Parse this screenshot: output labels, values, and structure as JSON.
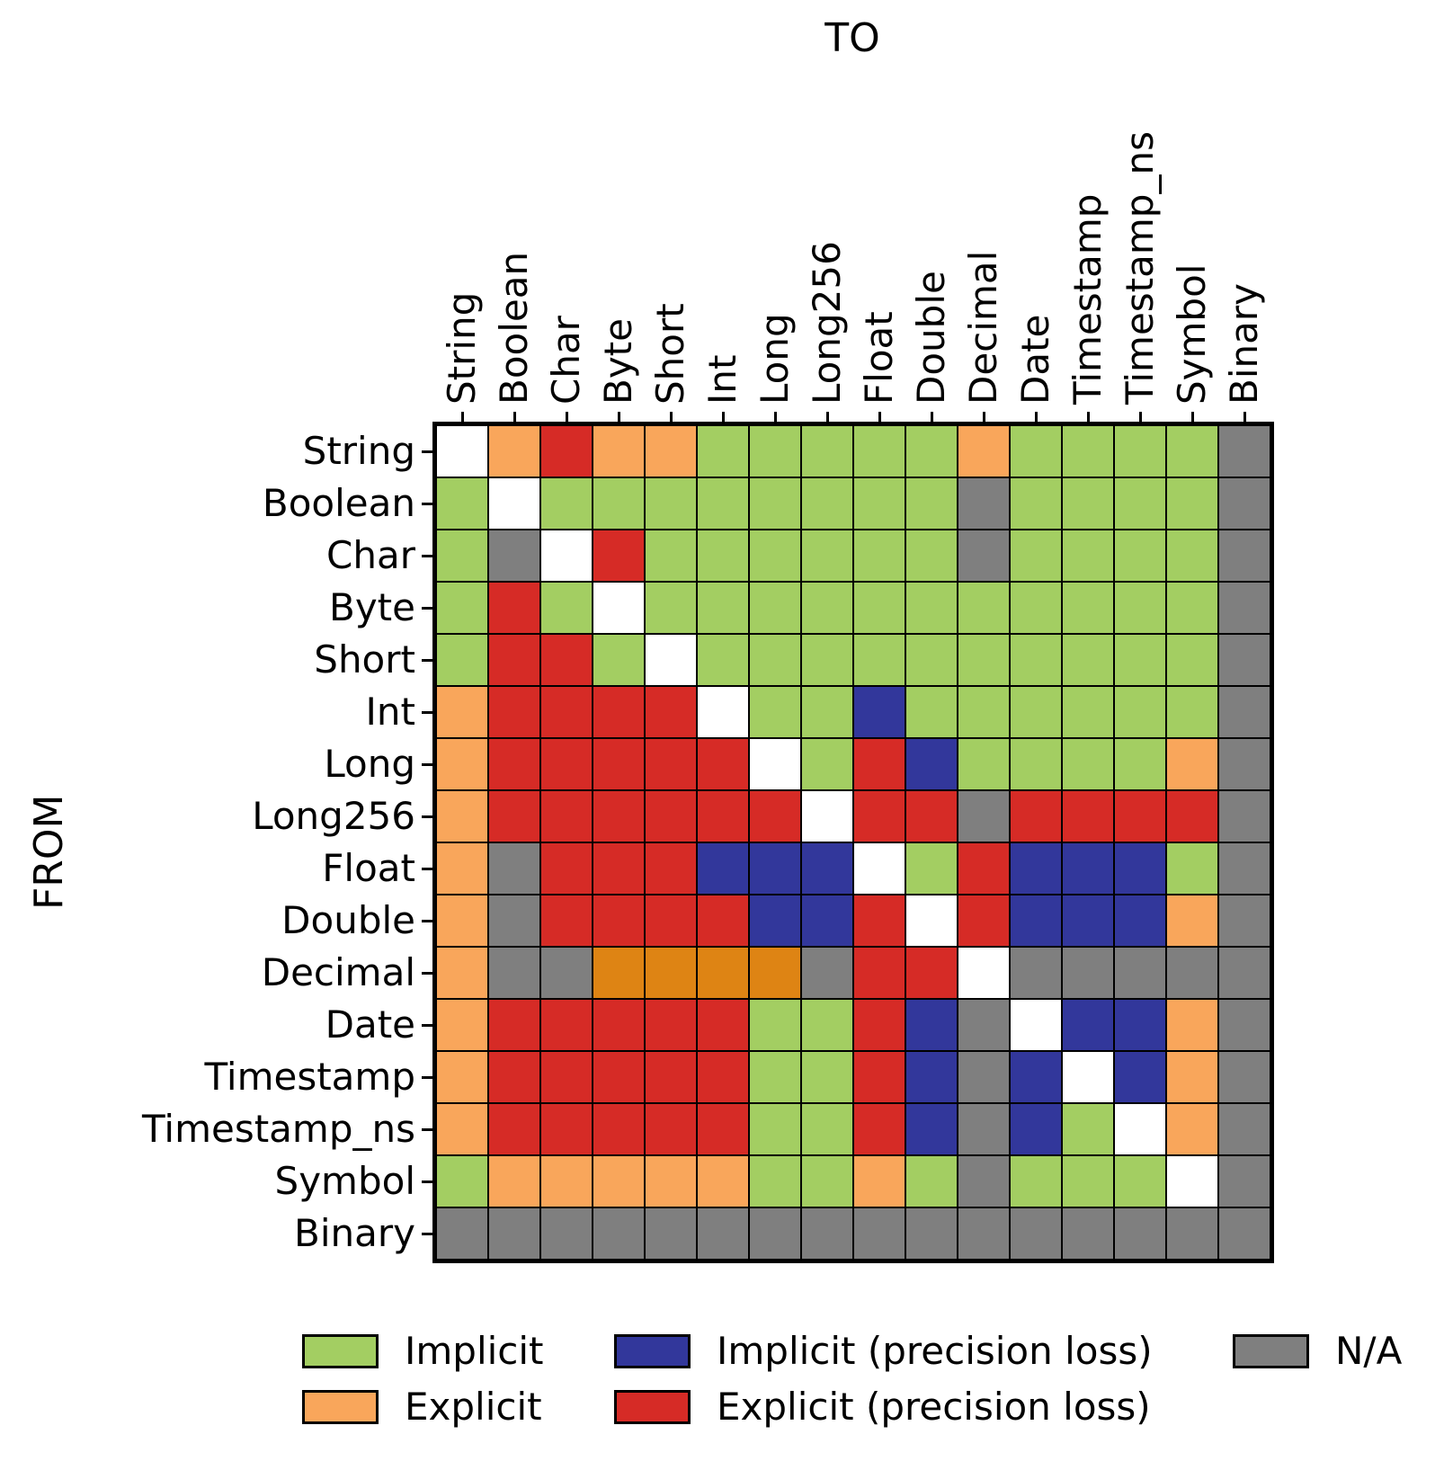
{
  "chart_data": {
    "type": "heatmap",
    "xlabel": "TO",
    "ylabel": "FROM",
    "grid": "black cell borders, no gaps",
    "legend_position": "bottom, 3 columns x 2 rows",
    "categories_x": [
      "String",
      "Boolean",
      "Char",
      "Byte",
      "Short",
      "Int",
      "Long",
      "Long256",
      "Float",
      "Double",
      "Decimal",
      "Date",
      "Timestamp",
      "Timestamp_ns",
      "Symbol",
      "Binary"
    ],
    "categories_y": [
      "String",
      "Boolean",
      "Char",
      "Byte",
      "Short",
      "Int",
      "Long",
      "Long256",
      "Float",
      "Double",
      "Decimal",
      "Date",
      "Timestamp",
      "Timestamp_ns",
      "Symbol",
      "Binary"
    ],
    "palette": {
      "I": {
        "label": "Implicit",
        "color": "#A3CE62"
      },
      "E": {
        "label": "Explicit",
        "color": "#F9A65B"
      },
      "IP": {
        "label": "Implicit (precision loss)",
        "color": "#32379B"
      },
      "EP": {
        "label": "Explicit (precision loss)",
        "color": "#D62B26"
      },
      "E2": {
        "label": "",
        "color": "#DE8414"
      },
      "NA": {
        "label": "N/A",
        "color": "#7F7F7F"
      },
      "SELF": {
        "label": "",
        "color": "#FFFFFF"
      }
    },
    "legend": [
      {
        "label": "Implicit",
        "color": "#A3CE62"
      },
      {
        "label": "Implicit (precision loss)",
        "color": "#32379B"
      },
      {
        "label": "N/A",
        "color": "#7F7F7F"
      },
      {
        "label": "Explicit",
        "color": "#F9A65B"
      },
      {
        "label": "Explicit (precision loss)",
        "color": "#D62B26"
      }
    ],
    "cells": [
      [
        "SELF",
        "E",
        "EP",
        "E",
        "E",
        "I",
        "I",
        "I",
        "I",
        "I",
        "E",
        "I",
        "I",
        "I",
        "I",
        "NA"
      ],
      [
        "I",
        "SELF",
        "I",
        "I",
        "I",
        "I",
        "I",
        "I",
        "I",
        "I",
        "NA",
        "I",
        "I",
        "I",
        "I",
        "NA"
      ],
      [
        "I",
        "NA",
        "SELF",
        "EP",
        "I",
        "I",
        "I",
        "I",
        "I",
        "I",
        "NA",
        "I",
        "I",
        "I",
        "I",
        "NA"
      ],
      [
        "I",
        "EP",
        "I",
        "SELF",
        "I",
        "I",
        "I",
        "I",
        "I",
        "I",
        "I",
        "I",
        "I",
        "I",
        "I",
        "NA"
      ],
      [
        "I",
        "EP",
        "EP",
        "I",
        "SELF",
        "I",
        "I",
        "I",
        "I",
        "I",
        "I",
        "I",
        "I",
        "I",
        "I",
        "NA"
      ],
      [
        "E",
        "EP",
        "EP",
        "EP",
        "EP",
        "SELF",
        "I",
        "I",
        "IP",
        "I",
        "I",
        "I",
        "I",
        "I",
        "I",
        "NA"
      ],
      [
        "E",
        "EP",
        "EP",
        "EP",
        "EP",
        "EP",
        "SELF",
        "I",
        "EP",
        "IP",
        "I",
        "I",
        "I",
        "I",
        "E",
        "NA"
      ],
      [
        "E",
        "EP",
        "EP",
        "EP",
        "EP",
        "EP",
        "EP",
        "SELF",
        "EP",
        "EP",
        "NA",
        "EP",
        "EP",
        "EP",
        "EP",
        "NA"
      ],
      [
        "E",
        "NA",
        "EP",
        "EP",
        "EP",
        "IP",
        "IP",
        "IP",
        "SELF",
        "I",
        "EP",
        "IP",
        "IP",
        "IP",
        "I",
        "NA"
      ],
      [
        "E",
        "NA",
        "EP",
        "EP",
        "EP",
        "EP",
        "IP",
        "IP",
        "EP",
        "SELF",
        "EP",
        "IP",
        "IP",
        "IP",
        "E",
        "NA"
      ],
      [
        "E",
        "NA",
        "NA",
        "E2",
        "E2",
        "E2",
        "E2",
        "NA",
        "EP",
        "EP",
        "SELF",
        "NA",
        "NA",
        "NA",
        "NA",
        "NA"
      ],
      [
        "E",
        "EP",
        "EP",
        "EP",
        "EP",
        "EP",
        "I",
        "I",
        "EP",
        "IP",
        "NA",
        "SELF",
        "IP",
        "IP",
        "E",
        "NA"
      ],
      [
        "E",
        "EP",
        "EP",
        "EP",
        "EP",
        "EP",
        "I",
        "I",
        "EP",
        "IP",
        "NA",
        "IP",
        "SELF",
        "IP",
        "E",
        "NA"
      ],
      [
        "E",
        "EP",
        "EP",
        "EP",
        "EP",
        "EP",
        "I",
        "I",
        "EP",
        "IP",
        "NA",
        "IP",
        "I",
        "SELF",
        "E",
        "NA"
      ],
      [
        "I",
        "E",
        "E",
        "E",
        "E",
        "E",
        "I",
        "I",
        "E",
        "I",
        "NA",
        "I",
        "I",
        "I",
        "SELF",
        "NA"
      ],
      [
        "NA",
        "NA",
        "NA",
        "NA",
        "NA",
        "NA",
        "NA",
        "NA",
        "NA",
        "NA",
        "NA",
        "NA",
        "NA",
        "NA",
        "NA",
        "NA"
      ]
    ]
  }
}
